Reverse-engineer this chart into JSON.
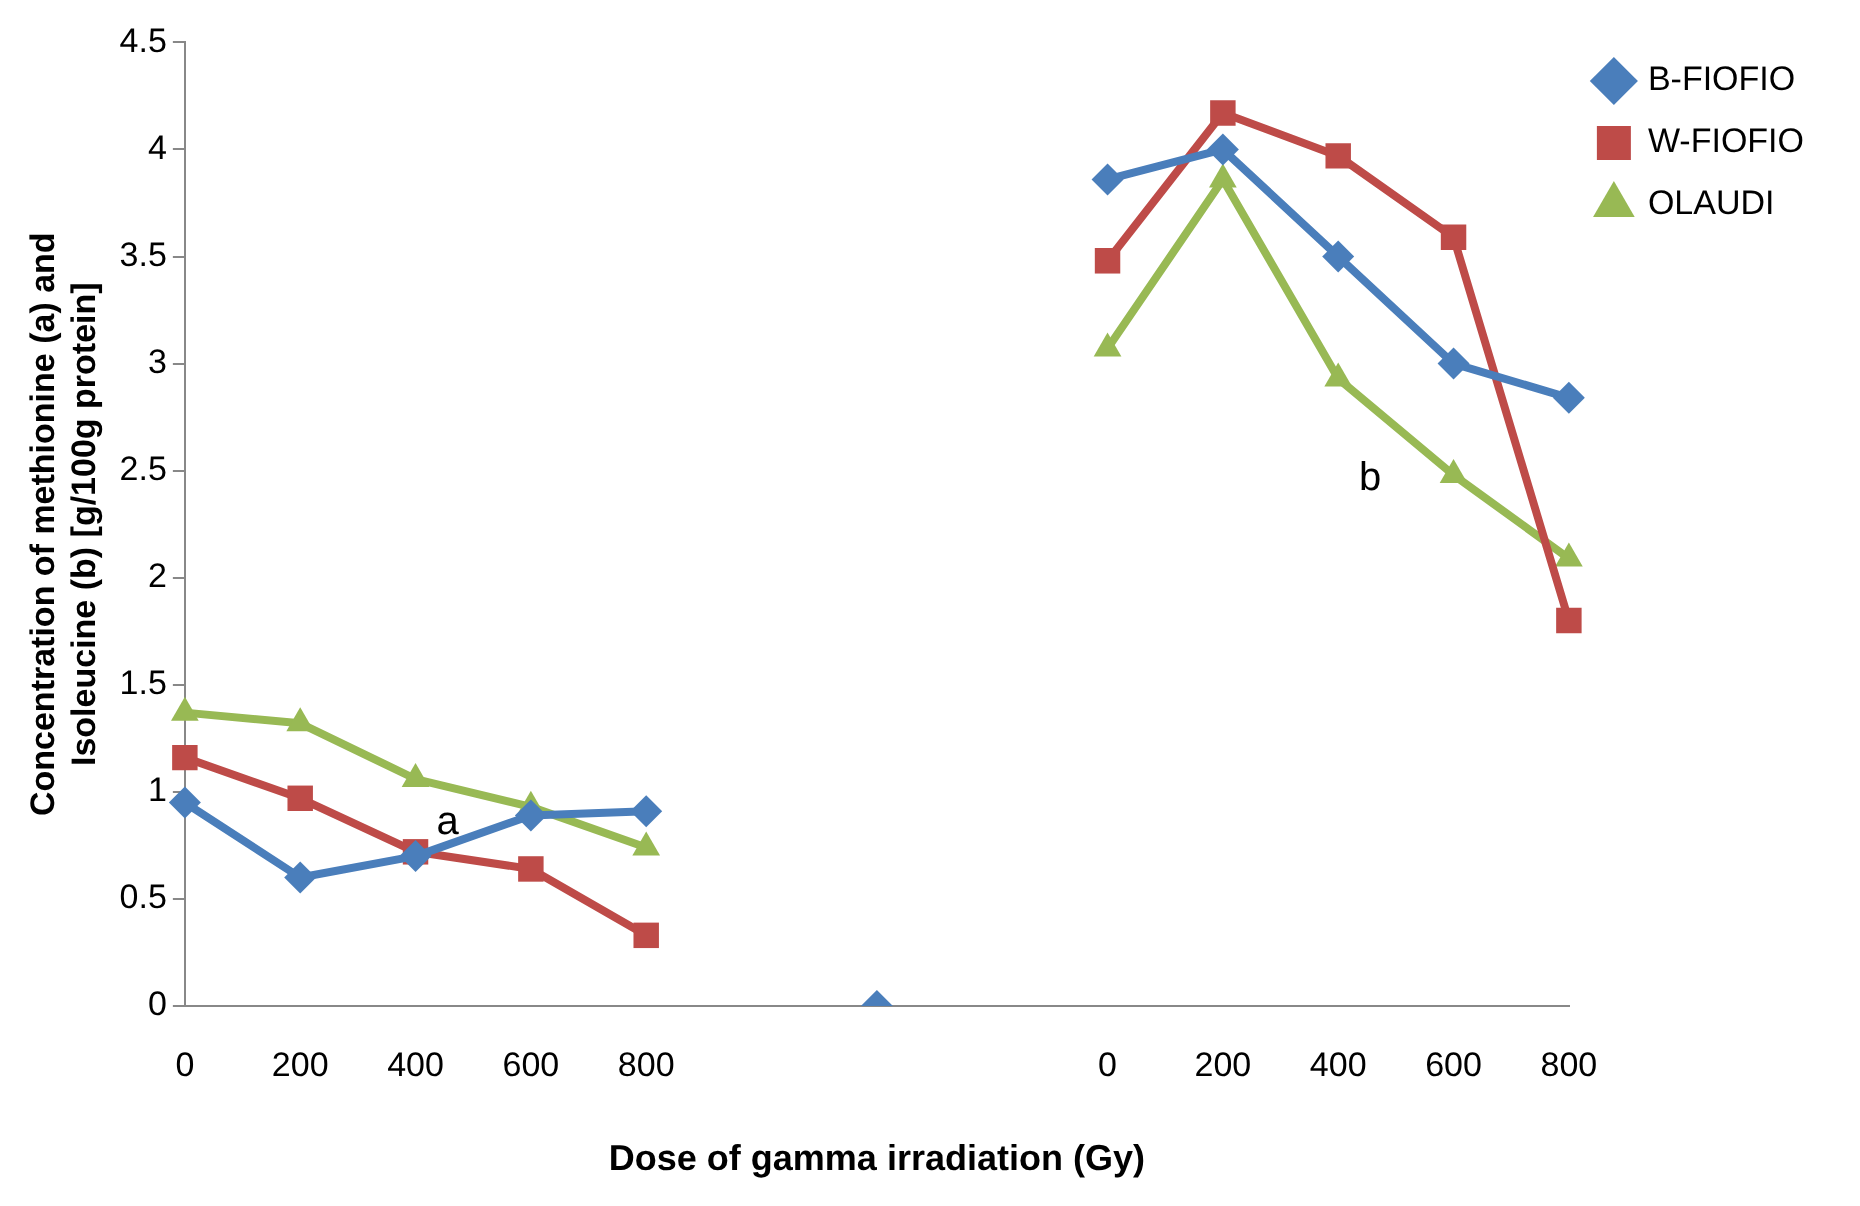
{
  "chart_data": {
    "type": "line",
    "xlabel": "Dose of gamma irradiation (Gy)",
    "ylabel": "Concentration of methionine (a) and\nIsoleucine (b) [g/100g protein]",
    "categories": [
      "0",
      "200",
      "400",
      "600",
      "800",
      null,
      null,
      null,
      "0",
      "200",
      "400",
      "600",
      "800"
    ],
    "series": [
      {
        "name": "B-FIOFIO",
        "color": "#4a7ebb",
        "marker": "diamond",
        "values": [
          0.95,
          0.6,
          0.7,
          0.89,
          0.91,
          null,
          0,
          null,
          3.86,
          4.0,
          3.5,
          3.0,
          2.84
        ]
      },
      {
        "name": "W-FIOFIO",
        "color": "#be4b48",
        "marker": "square",
        "values": [
          1.16,
          0.97,
          0.72,
          0.64,
          0.33,
          null,
          null,
          null,
          3.48,
          4.17,
          3.97,
          3.59,
          1.8
        ]
      },
      {
        "name": "OLAUDI",
        "color": "#98b954",
        "marker": "triangle",
        "values": [
          1.37,
          1.32,
          1.06,
          0.93,
          0.74,
          null,
          null,
          null,
          3.07,
          3.86,
          2.93,
          2.48,
          2.09
        ]
      }
    ],
    "ylim": [
      0,
      4.5
    ],
    "yticks": [
      0,
      0.5,
      1,
      1.5,
      2,
      2.5,
      3,
      3.5,
      4,
      4.5
    ],
    "grid": false,
    "legend": "top right",
    "annotations": [
      "a",
      "b"
    ]
  }
}
